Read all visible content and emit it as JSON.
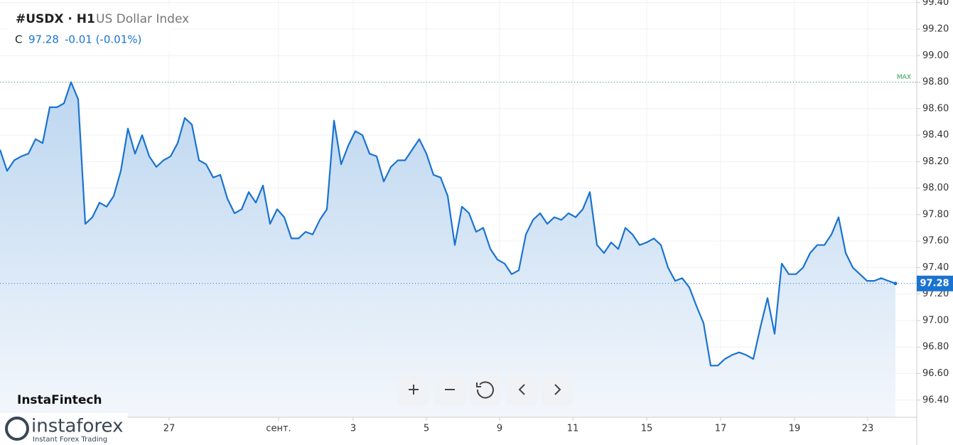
{
  "chart_data": {
    "type": "line",
    "title": "#USDX · H1",
    "subtitle": "US Dollar Index",
    "close_label": "C",
    "current": 97.28,
    "change_label": "-0.01 (-0.01%)",
    "max_value": 98.8,
    "max_label": "MAX",
    "color": "#1a73d0",
    "grid": true,
    "values": [
      98.29,
      98.13,
      98.21,
      98.24,
      98.26,
      98.37,
      98.34,
      98.61,
      98.61,
      98.64,
      98.8,
      98.67,
      97.73,
      97.78,
      97.89,
      97.86,
      97.94,
      98.13,
      98.45,
      98.26,
      98.4,
      98.24,
      98.16,
      98.21,
      98.24,
      98.34,
      98.53,
      98.48,
      98.21,
      98.18,
      98.08,
      98.1,
      97.92,
      97.81,
      97.84,
      97.97,
      97.89,
      98.02,
      97.73,
      97.84,
      97.78,
      97.62,
      97.62,
      97.67,
      97.65,
      97.76,
      97.84,
      98.51,
      98.18,
      98.32,
      98.43,
      98.4,
      98.26,
      98.24,
      98.05,
      98.16,
      98.21,
      98.21,
      98.29,
      98.37,
      98.26,
      98.1,
      98.08,
      97.94,
      97.57,
      97.86,
      97.81,
      97.67,
      97.7,
      97.54,
      97.46,
      97.43,
      97.35,
      97.38,
      97.65,
      97.76,
      97.81,
      97.73,
      97.78,
      97.76,
      97.81,
      97.78,
      97.84,
      97.97,
      97.57,
      97.51,
      97.59,
      97.54,
      97.7,
      97.65,
      97.57,
      97.59,
      97.62,
      97.57,
      97.4,
      97.3,
      97.32,
      97.25,
      97.11,
      96.98,
      96.66,
      96.66,
      96.71,
      96.74,
      96.76,
      96.74,
      96.71,
      96.95,
      97.17,
      96.9,
      97.43,
      97.35,
      97.35,
      97.4,
      97.51,
      97.57,
      97.57,
      97.65,
      97.78,
      97.51,
      97.4,
      97.35,
      97.3,
      97.3,
      97.32,
      97.3,
      97.28
    ],
    "xlim": [
      0,
      129
    ],
    "xticks": [
      {
        "value": 23.8,
        "label": "27"
      },
      {
        "value": 39.2,
        "label": "сент."
      },
      {
        "value": 49.7,
        "label": "3"
      },
      {
        "value": 60,
        "label": "5"
      },
      {
        "value": 70.3,
        "label": "9"
      },
      {
        "value": 80.6,
        "label": "11"
      },
      {
        "value": 91,
        "label": "15"
      },
      {
        "value": 101.4,
        "label": "17"
      },
      {
        "value": 111.8,
        "label": "19"
      },
      {
        "value": 122.1,
        "label": "23"
      }
    ],
    "ylim": [
      96.27,
      99.42
    ],
    "yticks": [
      {
        "value": 96.4,
        "label": "96.40"
      },
      {
        "value": 96.6,
        "label": "96.60"
      },
      {
        "value": 96.8,
        "label": "96.80"
      },
      {
        "value": 97.0,
        "label": "97.00"
      },
      {
        "value": 97.2,
        "label": "97.20"
      },
      {
        "value": 97.4,
        "label": "97.40"
      },
      {
        "value": 97.6,
        "label": "97.60"
      },
      {
        "value": 97.8,
        "label": "97.80"
      },
      {
        "value": 98.0,
        "label": "98.00"
      },
      {
        "value": 98.2,
        "label": "98.20"
      },
      {
        "value": 98.4,
        "label": "98.40"
      },
      {
        "value": 98.6,
        "label": "98.60"
      },
      {
        "value": 98.8,
        "label": "98.80"
      },
      {
        "value": 99.0,
        "label": "99.00"
      },
      {
        "value": 99.2,
        "label": "99.20"
      },
      {
        "value": 99.4,
        "label": "99.40"
      }
    ]
  },
  "branding": {
    "fintech": "InstaFintech",
    "instaforex": "instaforex",
    "tagline": "Instant Forex Trading"
  }
}
